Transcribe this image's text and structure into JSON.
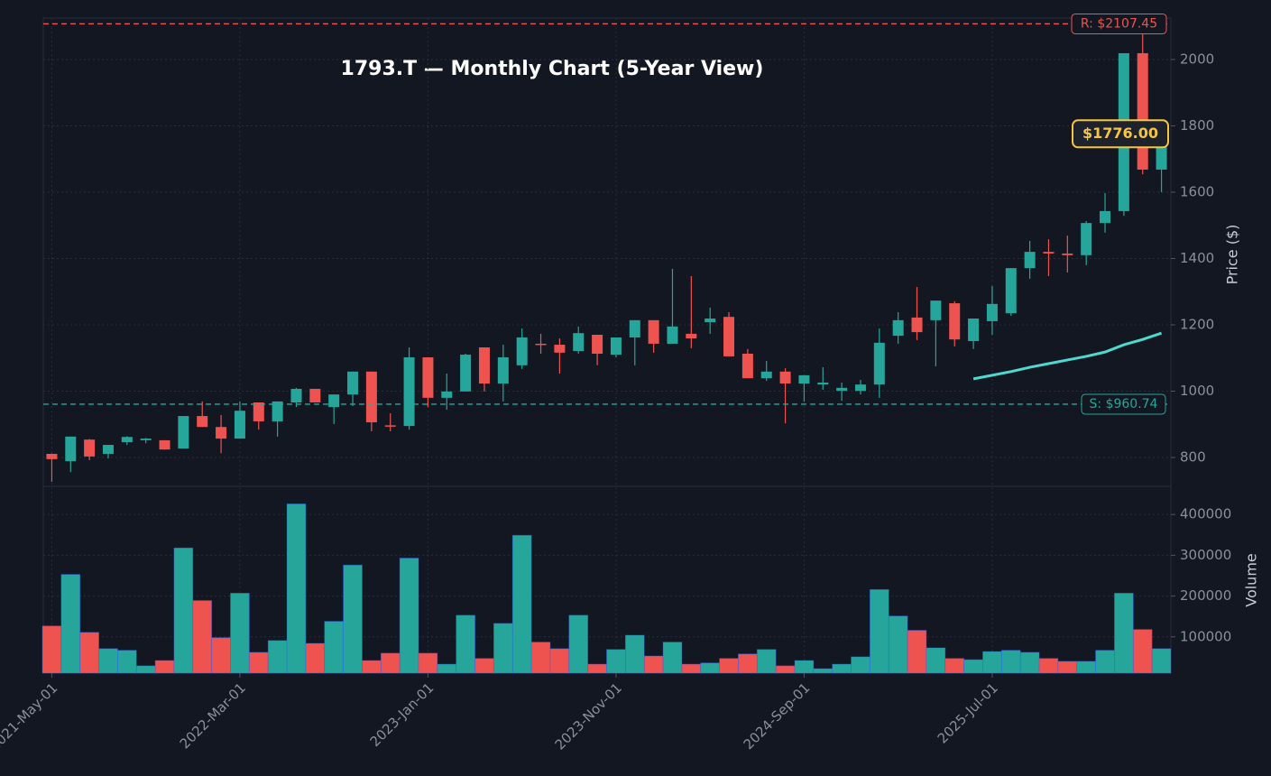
{
  "chart_data": {
    "type": "candlestick",
    "title": "1793.T — Monthly Chart (5-Year View)",
    "categories": [
      "2021-May-01",
      null,
      null,
      null,
      null,
      null,
      null,
      null,
      null,
      null,
      "2022-Mar-01",
      null,
      null,
      null,
      null,
      null,
      null,
      null,
      null,
      null,
      "2023-Jan-01",
      null,
      null,
      null,
      null,
      null,
      null,
      null,
      null,
      null,
      "2023-Nov-01",
      null,
      null,
      null,
      null,
      null,
      null,
      null,
      null,
      null,
      "2024-Sep-01",
      null,
      null,
      null,
      null,
      null,
      null,
      null,
      null,
      null,
      "2025-Jul-01",
      null,
      null,
      null,
      null,
      null,
      null,
      null,
      null,
      null
    ],
    "open": [
      811,
      789,
      854,
      811,
      846,
      852,
      852,
      827,
      925,
      892,
      857,
      966,
      909,
      966,
      1007,
      952,
      990,
      1059,
      897,
      895,
      1102,
      980,
      999,
      1132,
      1023,
      1078,
      1143,
      1140,
      1121,
      1170,
      1110,
      1162,
      1214,
      1143,
      1173,
      1208,
      1224,
      1113,
      1039,
      1059,
      1023,
      1020,
      1001,
      1001,
      1020,
      1167,
      1222,
      1214,
      1265,
      1151,
      1211,
      1235,
      1371,
      1420,
      1415,
      1410,
      1507,
      1543,
      2019,
      1668
    ],
    "high": [
      812,
      863,
      856,
      838,
      864,
      859,
      852,
      925,
      969,
      928,
      969,
      966,
      969,
      1010,
      1007,
      990,
      1059,
      1059,
      933,
      1132,
      1102,
      1053,
      1113,
      1132,
      1140,
      1189,
      1173,
      1159,
      1195,
      1170,
      1162,
      1214,
      1214,
      1369,
      1347,
      1252,
      1238,
      1127,
      1091,
      1069,
      1048,
      1072,
      1026,
      1034,
      1189,
      1238,
      1314,
      1273,
      1271,
      1219,
      1317,
      1371,
      1453,
      1458,
      1469,
      1513,
      1597,
      2019,
      2103,
      1800
    ],
    "low": [
      727,
      756,
      792,
      797,
      838,
      843,
      824,
      827,
      892,
      813,
      857,
      884,
      863,
      952,
      966,
      901,
      955,
      879,
      879,
      884,
      952,
      944,
      999,
      999,
      969,
      1067,
      1113,
      1053,
      1113,
      1078,
      1102,
      1078,
      1116,
      1143,
      1129,
      1173,
      1105,
      1039,
      1031,
      903,
      969,
      1004,
      971,
      990,
      980,
      1143,
      1154,
      1075,
      1135,
      1127,
      1170,
      1227,
      1339,
      1347,
      1358,
      1380,
      1478,
      1529,
      1654,
      1600
    ],
    "close": [
      795,
      863,
      803,
      838,
      862,
      857,
      824,
      925,
      892,
      857,
      941,
      909,
      969,
      1007,
      966,
      990,
      1059,
      906,
      895,
      1102,
      980,
      999,
      1110,
      1023,
      1102,
      1162,
      1140,
      1116,
      1175,
      1113,
      1162,
      1214,
      1143,
      1195,
      1159,
      1219,
      1105,
      1039,
      1059,
      1023,
      1048,
      1026,
      1010,
      1020,
      1146,
      1214,
      1178,
      1273,
      1156,
      1219,
      1263,
      1371,
      1420,
      1415,
      1410,
      1507,
      1543,
      2019,
      1668,
      1776
    ],
    "volume": [
      126700,
      253000,
      111000,
      71000,
      67000,
      29000,
      42000,
      318000,
      189000,
      98000,
      207000,
      62000,
      91000,
      426000,
      84000,
      138000,
      276000,
      42000,
      60000,
      293000,
      60000,
      33000,
      153000,
      47000,
      133000,
      349000,
      87000,
      71000,
      153000,
      33000,
      69000,
      104000,
      53000,
      87000,
      33000,
      36000,
      47000,
      58000,
      69000,
      29000,
      42000,
      22000,
      33000,
      51000,
      216000,
      151000,
      116000,
      73000,
      47000,
      44000,
      64000,
      67000,
      62000,
      47000,
      40000,
      40000,
      67000,
      207000,
      118000,
      71000
    ],
    "ma": [
      null,
      null,
      null,
      null,
      null,
      null,
      null,
      null,
      null,
      null,
      null,
      null,
      null,
      null,
      null,
      null,
      null,
      null,
      null,
      null,
      null,
      null,
      null,
      null,
      null,
      null,
      null,
      null,
      null,
      null,
      null,
      null,
      null,
      null,
      null,
      null,
      null,
      null,
      null,
      null,
      null,
      null,
      null,
      null,
      null,
      null,
      null,
      null,
      null,
      1037,
      1048,
      1059,
      1072,
      1083,
      1094,
      1105,
      1118,
      1140,
      1156,
      1175
    ],
    "up_color": "#26a69a",
    "down_color": "#ef5350",
    "ma_color": "#4dd9d0",
    "ylim": [
      713,
      2125
    ],
    "yticks": [
      800,
      1000,
      1200,
      1400,
      1600,
      1800,
      2000
    ],
    "ylabel": "Price ($)",
    "y2lim": [
      11000,
      469000
    ],
    "y2ticks": [
      100000,
      200000,
      300000,
      400000
    ],
    "y2label": "Volume",
    "resistance": {
      "value": 2107.45,
      "label": "R: $2107.45"
    },
    "support": {
      "value": 960.74,
      "label": "S: $960.74"
    },
    "last_price": {
      "value": 1776,
      "label": "$1776.00"
    },
    "grid": true
  }
}
